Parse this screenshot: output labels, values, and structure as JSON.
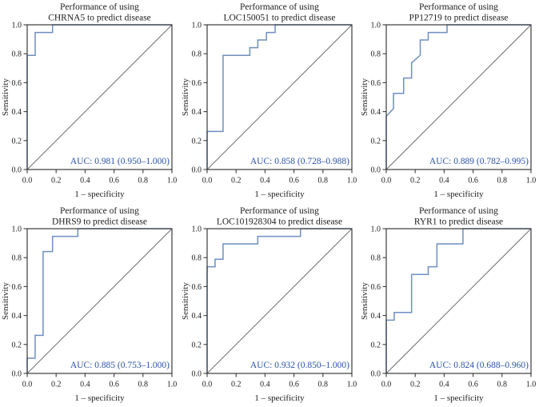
{
  "figure": {
    "background": "#ffffff",
    "layout": "2 rows x 3 columns of ROC curve panels"
  },
  "colors": {
    "roc_curve": "#6e8fc2",
    "reference_line": "#6e6e6e",
    "axis_box": "#3a3a3a",
    "text": "#1c1c1c",
    "auc_text": "#2a52a8"
  },
  "chart_data": [
    {
      "type": "line",
      "title_lines": [
        "Performance of using",
        "CHRNA5 to predict disease"
      ],
      "xlabel": "1 – specificity",
      "ylabel": "Sensitivity",
      "xlim": [
        0,
        1
      ],
      "ylim": [
        0,
        1
      ],
      "tick_values": [
        0,
        0.2,
        0.4,
        0.6,
        0.8,
        1
      ],
      "tick_labels": [
        "0.0",
        "0.2",
        "0.4",
        "0.6",
        "0.8",
        "1.0"
      ],
      "grid": false,
      "legend": "none",
      "auc_label": "AUC: 0.981 (0.950–1.000)",
      "reference_line": [
        [
          0,
          0
        ],
        [
          1,
          1
        ]
      ],
      "roc_points": [
        [
          0,
          0
        ],
        [
          0,
          0.789
        ],
        [
          0.055,
          0.789
        ],
        [
          0.055,
          0.947
        ],
        [
          0.175,
          0.947
        ],
        [
          0.175,
          1
        ],
        [
          1,
          1
        ]
      ]
    },
    {
      "type": "line",
      "title_lines": [
        "Performance of using",
        "LOC150051 to predict disease"
      ],
      "xlabel": "1 – specificity",
      "ylabel": "Sensitivity",
      "xlim": [
        0,
        1
      ],
      "ylim": [
        0,
        1
      ],
      "tick_values": [
        0,
        0.2,
        0.4,
        0.6,
        0.8,
        1
      ],
      "tick_labels": [
        "0.0",
        "0.2",
        "0.4",
        "0.6",
        "0.8",
        "1.0"
      ],
      "grid": false,
      "legend": "none",
      "auc_label": "AUC: 0.858 (0.728–0.988)",
      "reference_line": [
        [
          0,
          0
        ],
        [
          1,
          1
        ]
      ],
      "roc_points": [
        [
          0,
          0
        ],
        [
          0,
          0.263
        ],
        [
          0.11,
          0.263
        ],
        [
          0.11,
          0.789
        ],
        [
          0.295,
          0.789
        ],
        [
          0.295,
          0.842
        ],
        [
          0.35,
          0.842
        ],
        [
          0.35,
          0.895
        ],
        [
          0.41,
          0.895
        ],
        [
          0.41,
          0.947
        ],
        [
          0.47,
          0.947
        ],
        [
          0.47,
          1
        ],
        [
          1,
          1
        ]
      ]
    },
    {
      "type": "line",
      "title_lines": [
        "Performance of using",
        "PP12719 to predict disease"
      ],
      "xlabel": "1 – specificity",
      "ylabel": "Sensitivity",
      "xlim": [
        0,
        1
      ],
      "ylim": [
        0,
        1
      ],
      "tick_values": [
        0,
        0.2,
        0.4,
        0.6,
        0.8,
        1
      ],
      "tick_labels": [
        "0.0",
        "0.2",
        "0.4",
        "0.6",
        "0.8",
        "1.0"
      ],
      "grid": false,
      "legend": "none",
      "auc_label": "AUC: 0.889 (0.782–0.995)",
      "reference_line": [
        [
          0,
          0
        ],
        [
          1,
          1
        ]
      ],
      "roc_points": [
        [
          0,
          0
        ],
        [
          0,
          0.368
        ],
        [
          0.05,
          0.421
        ],
        [
          0.05,
          0.526
        ],
        [
          0.12,
          0.526
        ],
        [
          0.12,
          0.632
        ],
        [
          0.175,
          0.632
        ],
        [
          0.175,
          0.737
        ],
        [
          0.235,
          0.789
        ],
        [
          0.235,
          0.895
        ],
        [
          0.29,
          0.895
        ],
        [
          0.29,
          0.947
        ],
        [
          0.42,
          0.947
        ],
        [
          0.42,
          1
        ],
        [
          1,
          1
        ]
      ]
    },
    {
      "type": "line",
      "title_lines": [
        "Performance of using",
        "DHRS9 to predict disease"
      ],
      "xlabel": "1 – specificity",
      "ylabel": "Sensitivity",
      "xlim": [
        0,
        1
      ],
      "ylim": [
        0,
        1
      ],
      "tick_values": [
        0,
        0.2,
        0.4,
        0.6,
        0.8,
        1
      ],
      "tick_labels": [
        "0.0",
        "0.2",
        "0.4",
        "0.6",
        "0.8",
        "1.0"
      ],
      "grid": false,
      "legend": "none",
      "auc_label": "AUC: 0.885 (0.753–1.000)",
      "reference_line": [
        [
          0,
          0
        ],
        [
          1,
          1
        ]
      ],
      "roc_points": [
        [
          0,
          0
        ],
        [
          0,
          0.105
        ],
        [
          0.055,
          0.105
        ],
        [
          0.055,
          0.263
        ],
        [
          0.11,
          0.263
        ],
        [
          0.11,
          0.842
        ],
        [
          0.175,
          0.842
        ],
        [
          0.175,
          0.947
        ],
        [
          0.35,
          0.947
        ],
        [
          0.35,
          1
        ],
        [
          1,
          1
        ]
      ]
    },
    {
      "type": "line",
      "title_lines": [
        "Performance of using",
        "LOC101928304 to predict disease"
      ],
      "xlabel": "1 – specificity",
      "ylabel": "Sensitivity",
      "xlim": [
        0,
        1
      ],
      "ylim": [
        0,
        1
      ],
      "tick_values": [
        0,
        0.2,
        0.4,
        0.6,
        0.8,
        1
      ],
      "tick_labels": [
        "0.0",
        "0.2",
        "0.4",
        "0.6",
        "0.8",
        "1.0"
      ],
      "grid": false,
      "legend": "none",
      "auc_label": "AUC: 0.932 (0.850–1.000)",
      "reference_line": [
        [
          0,
          0
        ],
        [
          1,
          1
        ]
      ],
      "roc_points": [
        [
          0,
          0
        ],
        [
          0,
          0.737
        ],
        [
          0.055,
          0.737
        ],
        [
          0.055,
          0.789
        ],
        [
          0.11,
          0.789
        ],
        [
          0.11,
          0.895
        ],
        [
          0.35,
          0.895
        ],
        [
          0.35,
          0.947
        ],
        [
          0.645,
          0.947
        ],
        [
          0.645,
          1
        ],
        [
          1,
          1
        ]
      ]
    },
    {
      "type": "line",
      "title_lines": [
        "Performance of using",
        "RYR1 to predict disease"
      ],
      "xlabel": "1 – specificity",
      "ylabel": "Sensitivity",
      "xlim": [
        0,
        1
      ],
      "ylim": [
        0,
        1
      ],
      "tick_values": [
        0,
        0.2,
        0.4,
        0.6,
        0.8,
        1
      ],
      "tick_labels": [
        "0.0",
        "0.2",
        "0.4",
        "0.6",
        "0.8",
        "1.0"
      ],
      "grid": false,
      "legend": "none",
      "auc_label": "AUC: 0.824 (0.688–0.960)",
      "reference_line": [
        [
          0,
          0
        ],
        [
          1,
          1
        ]
      ],
      "roc_points": [
        [
          0,
          0
        ],
        [
          0,
          0.368
        ],
        [
          0.055,
          0.368
        ],
        [
          0.055,
          0.421
        ],
        [
          0.175,
          0.421
        ],
        [
          0.175,
          0.684
        ],
        [
          0.29,
          0.684
        ],
        [
          0.29,
          0.737
        ],
        [
          0.35,
          0.737
        ],
        [
          0.35,
          0.895
        ],
        [
          0.53,
          0.895
        ],
        [
          0.53,
          1
        ],
        [
          1,
          1
        ]
      ]
    }
  ]
}
